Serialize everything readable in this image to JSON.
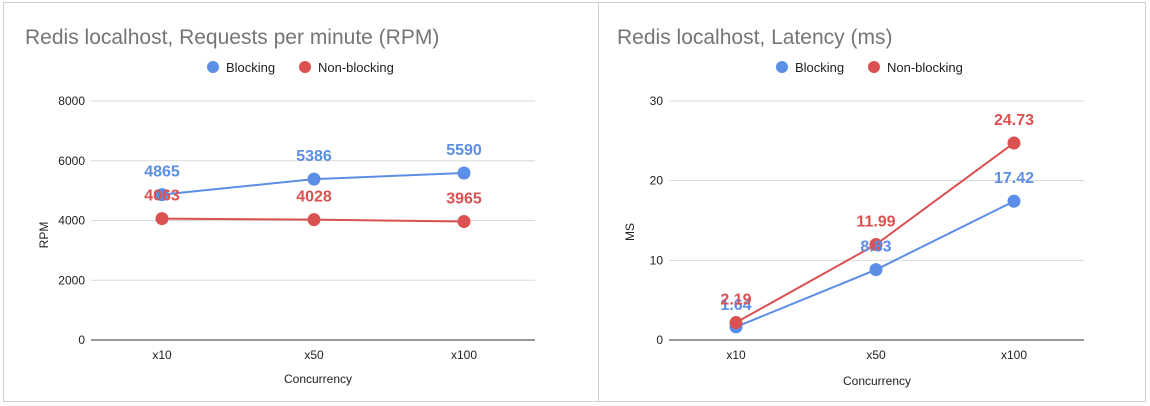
{
  "chart_data": [
    {
      "type": "line",
      "title": "Redis localhost, Requests per minute (RPM)",
      "xlabel": "Concurrency",
      "ylabel": "RPM",
      "categories": [
        "x10",
        "x50",
        "x100"
      ],
      "ylim": [
        0,
        8000
      ],
      "yticks": [
        0,
        2000,
        4000,
        6000,
        8000
      ],
      "yticklabels": [
        "0",
        "2000",
        "4000",
        "6000",
        "8000"
      ],
      "grid": true,
      "legend": "top-center",
      "series": [
        {
          "name": "Blocking",
          "color": "#5b8ee6",
          "values": [
            4865,
            5386,
            5590
          ],
          "labels": [
            "4865",
            "5386",
            "5590"
          ]
        },
        {
          "name": "Non-blocking",
          "color": "#d95150",
          "values": [
            4063,
            4028,
            3965
          ],
          "labels": [
            "4063",
            "4028",
            "3965"
          ]
        }
      ]
    },
    {
      "type": "line",
      "title": "Redis localhost, Latency (ms)",
      "xlabel": "Concurrency",
      "ylabel": "MS",
      "categories": [
        "x10",
        "x50",
        "x100"
      ],
      "ylim": [
        0,
        30
      ],
      "yticks": [
        0,
        10,
        20,
        30
      ],
      "yticklabels": [
        "0",
        "10",
        "20",
        "30"
      ],
      "grid": true,
      "legend": "top-center",
      "series": [
        {
          "name": "Blocking",
          "color": "#5b8ee6",
          "values": [
            1.64,
            8.83,
            17.42
          ],
          "labels": [
            "1.64",
            "8.83",
            "17.42"
          ]
        },
        {
          "name": "Non-blocking",
          "color": "#d95150",
          "values": [
            2.19,
            11.99,
            24.73
          ],
          "labels": [
            "2.19",
            "11.99",
            "24.73"
          ]
        }
      ]
    }
  ]
}
